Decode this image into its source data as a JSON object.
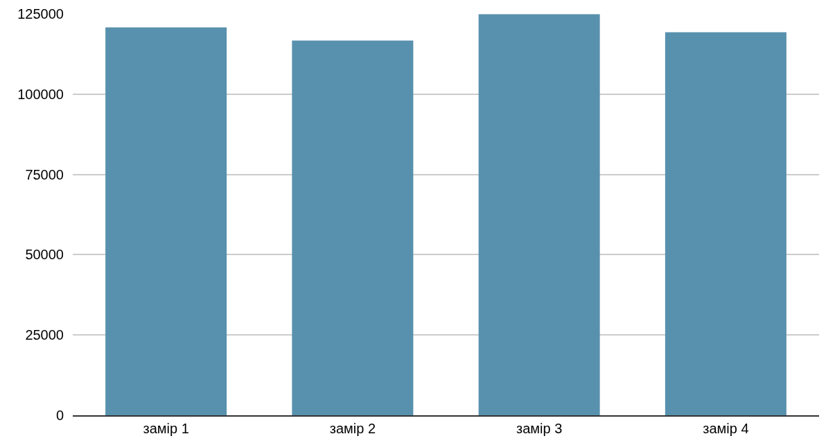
{
  "chart_data": {
    "type": "bar",
    "categories": [
      "замір 1",
      "замір 2",
      "замір 3",
      "замір 4"
    ],
    "values": [
      120800,
      116700,
      124900,
      119300
    ],
    "color": "#5891ad",
    "ylim": [
      0,
      125000
    ],
    "yticks": [
      0,
      25000,
      50000,
      75000,
      100000,
      125000
    ],
    "grid": "y"
  }
}
